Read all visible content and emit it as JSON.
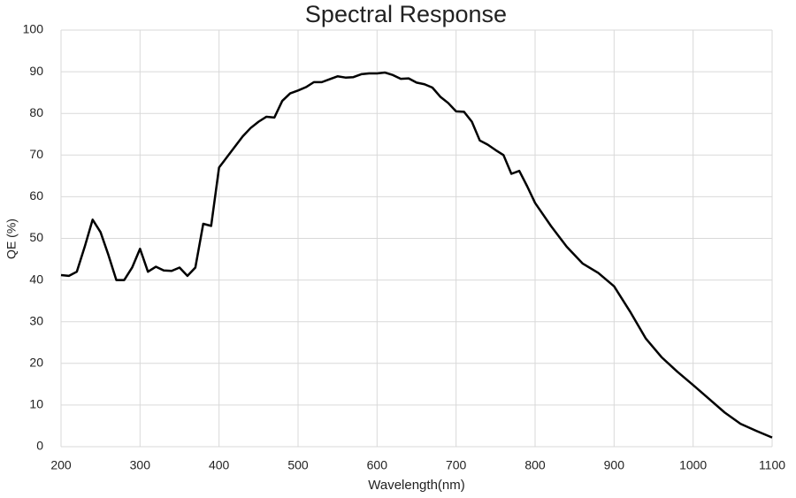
{
  "chart_data": {
    "type": "line",
    "title": "Spectral Response",
    "x_label": "Wavelength(nm)",
    "y_label": "QE (%)",
    "x": [
      200,
      210,
      220,
      230,
      240,
      250,
      260,
      270,
      280,
      290,
      300,
      310,
      320,
      330,
      340,
      350,
      360,
      370,
      380,
      390,
      400,
      410,
      420,
      430,
      440,
      450,
      460,
      470,
      480,
      490,
      500,
      510,
      520,
      530,
      540,
      550,
      560,
      570,
      580,
      590,
      600,
      610,
      620,
      630,
      640,
      650,
      660,
      670,
      680,
      690,
      700,
      710,
      720,
      730,
      740,
      750,
      760,
      770,
      780,
      790,
      800,
      820,
      840,
      860,
      880,
      900,
      920,
      940,
      960,
      980,
      1000,
      1020,
      1040,
      1060,
      1080,
      1100
    ],
    "series": [
      {
        "name": "QE",
        "color": "#000000",
        "values": [
          41.2,
          41.0,
          42,
          48,
          54.5,
          51.5,
          46,
          40,
          40,
          43,
          47.5,
          42,
          43.2,
          42.3,
          42.2,
          43,
          41,
          43,
          53.5,
          53,
          67,
          69.5,
          72,
          74.5,
          76.5,
          78,
          79.2,
          79,
          83,
          84.8,
          85.5,
          86.3,
          87.5,
          87.5,
          88.2,
          88.9,
          88.6,
          88.7,
          89.4,
          89.6,
          89.6,
          89.8,
          89.2,
          88.3,
          88.4,
          87.4,
          87,
          86.2,
          84,
          82.5,
          80.5,
          80.4,
          78,
          73.5,
          72.5,
          71.2,
          70,
          65.5,
          66.2,
          62.5,
          58.5,
          53,
          48,
          44,
          41.7,
          38.5,
          32.5,
          26,
          21.5,
          18,
          14.8,
          11.5,
          8.2,
          5.5,
          3.8,
          2.2
        ]
      }
    ],
    "xlim": [
      200,
      1100
    ],
    "xticks": [
      200,
      300,
      400,
      500,
      600,
      700,
      800,
      900,
      1000,
      1100
    ],
    "ylim": [
      0,
      100
    ],
    "yticks": [
      0,
      10,
      20,
      30,
      40,
      50,
      60,
      70,
      80,
      90,
      100
    ],
    "grid": true
  }
}
